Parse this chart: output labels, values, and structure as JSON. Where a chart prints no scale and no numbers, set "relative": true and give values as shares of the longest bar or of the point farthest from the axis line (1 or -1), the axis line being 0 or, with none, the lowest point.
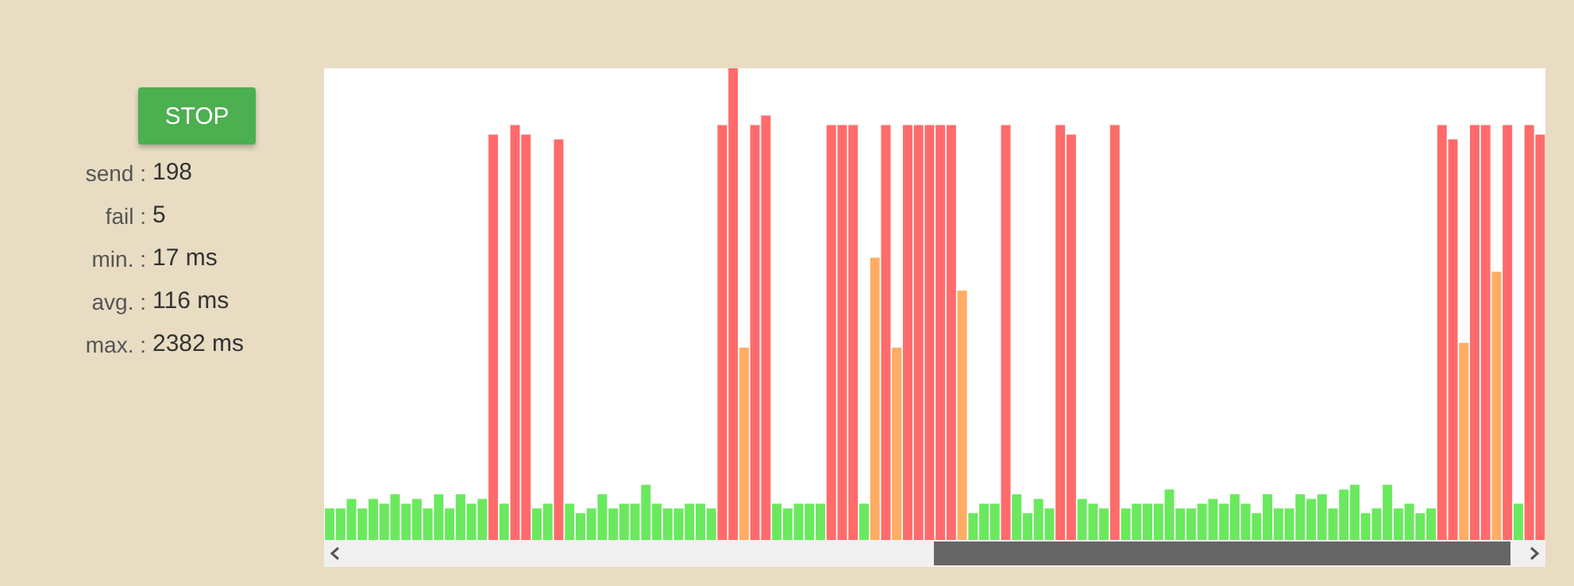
{
  "chart_data": {
    "type": "bar",
    "relative": true,
    "legend": false,
    "grid": false,
    "annotations": [
      "STOP",
      "send : 198",
      "fail : 5",
      "min. : 17 ms",
      "avg. : 116 ms",
      "max. : 2382 ms"
    ],
    "categories": [
      null,
      null,
      null,
      null,
      null,
      null,
      null,
      null,
      null,
      null,
      null,
      null,
      null,
      null,
      null,
      null,
      null,
      null,
      null,
      null,
      null,
      null,
      null,
      null,
      null,
      null,
      null,
      null,
      null,
      null,
      null,
      null,
      null,
      null,
      null,
      null,
      null,
      null,
      null,
      null,
      null,
      null,
      null,
      null,
      null,
      null,
      null,
      null,
      null,
      null,
      null,
      null,
      null,
      null,
      null,
      null,
      null,
      null,
      null,
      null,
      null,
      null,
      null,
      null,
      null,
      null,
      null,
      null,
      null,
      null,
      null,
      null,
      null,
      null,
      null,
      null,
      null,
      null,
      null,
      null,
      null,
      null,
      null,
      null,
      null,
      null,
      null,
      null,
      null,
      null,
      null,
      null,
      null,
      null,
      null,
      null,
      null,
      null,
      null,
      null,
      null,
      null,
      null,
      null,
      null,
      null,
      null,
      null,
      null,
      null,
      null,
      null
    ],
    "values": [
      0.07,
      0.07,
      0.09,
      0.07,
      0.09,
      0.08,
      0.1,
      0.08,
      0.09,
      0.07,
      0.1,
      0.07,
      0.1,
      0.08,
      0.09,
      0.86,
      0.08,
      0.88,
      0.86,
      0.07,
      0.08,
      0.85,
      0.08,
      0.06,
      0.07,
      0.1,
      0.07,
      0.08,
      0.08,
      0.12,
      0.08,
      0.07,
      0.07,
      0.08,
      0.08,
      0.07,
      0.88,
      1,
      0.41,
      0.88,
      0.9,
      0.08,
      0.07,
      0.08,
      0.08,
      0.08,
      0.88,
      0.88,
      0.88,
      0.08,
      0.6,
      0.88,
      0.41,
      0.88,
      0.88,
      0.88,
      0.88,
      0.88,
      0.53,
      0.06,
      0.08,
      0.08,
      0.88,
      0.1,
      0.06,
      0.09,
      0.07,
      0.88,
      0.86,
      0.09,
      0.08,
      0.07,
      0.88,
      0.07,
      0.08,
      0.08,
      0.08,
      0.11,
      0.07,
      0.07,
      0.08,
      0.09,
      0.08,
      0.1,
      0.08,
      0.06,
      0.1,
      0.07,
      0.07,
      0.1,
      0.09,
      0.1,
      0.07,
      0.11,
      0.12,
      0.06,
      0.07,
      0.12,
      0.07,
      0.08,
      0.06,
      0.07,
      0.88,
      0.85,
      0.42,
      0.88,
      0.88,
      0.57,
      0.88,
      0.08,
      0.88,
      0.86
    ],
    "colors": [
      "#6ae95e",
      "#6ae95e",
      "#6ae95e",
      "#6ae95e",
      "#6ae95e",
      "#6ae95e",
      "#6ae95e",
      "#6ae95e",
      "#6ae95e",
      "#6ae95e",
      "#6ae95e",
      "#6ae95e",
      "#6ae95e",
      "#6ae95e",
      "#6ae95e",
      "#ff6b6b",
      "#6ae95e",
      "#ff6b6b",
      "#ff6b6b",
      "#6ae95e",
      "#6ae95e",
      "#ff6b6b",
      "#6ae95e",
      "#6ae95e",
      "#6ae95e",
      "#6ae95e",
      "#6ae95e",
      "#6ae95e",
      "#6ae95e",
      "#6ae95e",
      "#6ae95e",
      "#6ae95e",
      "#6ae95e",
      "#6ae95e",
      "#6ae95e",
      "#6ae95e",
      "#ff6b6b",
      "#ff6b6b",
      "#ffad63",
      "#ff6b6b",
      "#ff6b6b",
      "#6ae95e",
      "#6ae95e",
      "#6ae95e",
      "#6ae95e",
      "#6ae95e",
      "#ff6b6b",
      "#ff6b6b",
      "#ff6b6b",
      "#6ae95e",
      "#ffad63",
      "#ff6b6b",
      "#ffad63",
      "#ff6b6b",
      "#ff6b6b",
      "#ff6b6b",
      "#ff6b6b",
      "#ff6b6b",
      "#ffad63",
      "#6ae95e",
      "#6ae95e",
      "#6ae95e",
      "#ff6b6b",
      "#6ae95e",
      "#6ae95e",
      "#6ae95e",
      "#6ae95e",
      "#ff6b6b",
      "#ff6b6b",
      "#6ae95e",
      "#6ae95e",
      "#6ae95e",
      "#ff6b6b",
      "#6ae95e",
      "#6ae95e",
      "#6ae95e",
      "#6ae95e",
      "#6ae95e",
      "#6ae95e",
      "#6ae95e",
      "#6ae95e",
      "#6ae95e",
      "#6ae95e",
      "#6ae95e",
      "#6ae95e",
      "#6ae95e",
      "#6ae95e",
      "#6ae95e",
      "#6ae95e",
      "#6ae95e",
      "#6ae95e",
      "#6ae95e",
      "#6ae95e",
      "#6ae95e",
      "#6ae95e",
      "#6ae95e",
      "#6ae95e",
      "#6ae95e",
      "#6ae95e",
      "#6ae95e",
      "#6ae95e",
      "#6ae95e",
      "#ff6b6b",
      "#ff6b6b",
      "#ffad63",
      "#ff6b6b",
      "#ff6b6b",
      "#ffad63",
      "#ff6b6b",
      "#6ae95e",
      "#ff6b6b",
      "#ff6b6b"
    ]
  }
}
